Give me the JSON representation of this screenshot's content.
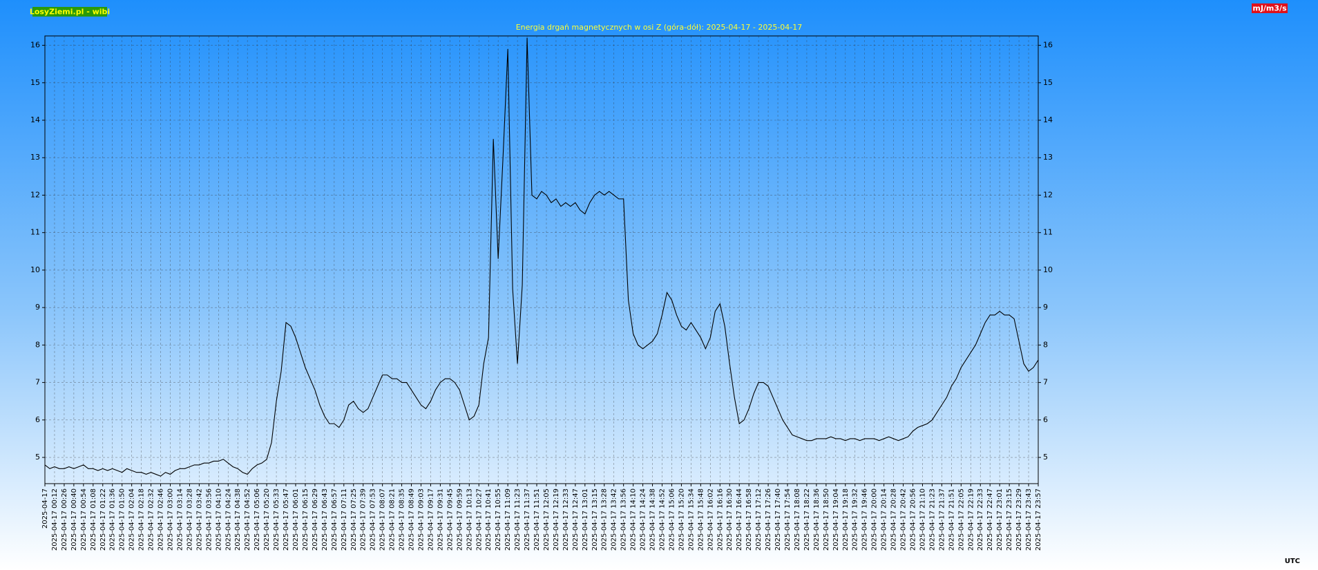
{
  "chart_data": {
    "type": "line",
    "badge": "LosyZiemi.pl - wibi",
    "unit": "mJ/m3/s",
    "timezone": "UTC",
    "title": "Energia drgań magnetycznych w osi Z (góra-dół): 2025-04-17 - 2025-04-17",
    "color": "#000000",
    "grid": true,
    "ylim": [
      4.3,
      16.25
    ],
    "yticks": [
      5,
      6,
      7,
      8,
      9,
      10,
      11,
      12,
      13,
      14,
      15,
      16
    ],
    "categories": [
      "2025-04-17",
      null,
      "2025-04-17 00:12",
      null,
      "2025-04-17 00:26",
      null,
      "2025-04-17 00:40",
      null,
      "2025-04-17 00:54",
      null,
      "2025-04-17 01:08",
      null,
      "2025-04-17 01:22",
      null,
      "2025-04-17 01:36",
      null,
      "2025-04-17 01:50",
      null,
      "2025-04-17 02:04",
      null,
      "2025-04-17 02:18",
      null,
      "2025-04-17 02:32",
      null,
      "2025-04-17 02:46",
      null,
      "2025-04-17 03:00",
      null,
      "2025-04-17 03:14",
      null,
      "2025-04-17 03:28",
      null,
      "2025-04-17 03:42",
      null,
      "2025-04-17 03:56",
      null,
      "2025-04-17 04:10",
      null,
      "2025-04-17 04:24",
      null,
      "2025-04-17 04:38",
      null,
      "2025-04-17 04:52",
      null,
      "2025-04-17 05:06",
      null,
      "2025-04-17 05:20",
      null,
      "2025-04-17 05:33",
      null,
      "2025-04-17 05:47",
      null,
      "2025-04-17 06:01",
      null,
      "2025-04-17 06:15",
      null,
      "2025-04-17 06:29",
      null,
      "2025-04-17 06:43",
      null,
      "2025-04-17 06:57",
      null,
      "2025-04-17 07:11",
      null,
      "2025-04-17 07:25",
      null,
      "2025-04-17 07:39",
      null,
      "2025-04-17 07:53",
      null,
      "2025-04-17 08:07",
      null,
      "2025-04-17 08:21",
      null,
      "2025-04-17 08:35",
      null,
      "2025-04-17 08:49",
      null,
      "2025-04-17 09:03",
      null,
      "2025-04-17 09:17",
      null,
      "2025-04-17 09:31",
      null,
      "2025-04-17 09:45",
      null,
      "2025-04-17 09:59",
      null,
      "2025-04-17 10:13",
      null,
      "2025-04-17 10:27",
      null,
      "2025-04-17 10:41",
      null,
      "2025-04-17 10:55",
      null,
      "2025-04-17 11:09",
      null,
      "2025-04-17 11:23",
      null,
      "2025-04-17 11:37",
      null,
      "2025-04-17 11:51",
      null,
      "2025-04-17 12:05",
      null,
      "2025-04-17 12:19",
      null,
      "2025-04-17 12:33",
      null,
      "2025-04-17 12:47",
      null,
      "2025-04-17 13:01",
      null,
      "2025-04-17 13:15",
      null,
      "2025-04-17 13:28",
      null,
      "2025-04-17 13:42",
      null,
      "2025-04-17 13:56",
      null,
      "2025-04-17 14:10",
      null,
      "2025-04-17 14:24",
      null,
      "2025-04-17 14:38",
      null,
      "2025-04-17 14:52",
      null,
      "2025-04-17 15:06",
      null,
      "2025-04-17 15:20",
      null,
      "2025-04-17 15:34",
      null,
      "2025-04-17 15:48",
      null,
      "2025-04-17 16:02",
      null,
      "2025-04-17 16:16",
      null,
      "2025-04-17 16:30",
      null,
      "2025-04-17 16:44",
      null,
      "2025-04-17 16:58",
      null,
      "2025-04-17 17:12",
      null,
      "2025-04-17 17:26",
      null,
      "2025-04-17 17:40",
      null,
      "2025-04-17 17:54",
      null,
      "2025-04-17 18:08",
      null,
      "2025-04-17 18:22",
      null,
      "2025-04-17 18:36",
      null,
      "2025-04-17 18:50",
      null,
      "2025-04-17 19:04",
      null,
      "2025-04-17 19:18",
      null,
      "2025-04-17 19:32",
      null,
      "2025-04-17 19:46",
      null,
      "2025-04-17 20:00",
      null,
      "2025-04-17 20:14",
      null,
      "2025-04-17 20:28",
      null,
      "2025-04-17 20:42",
      null,
      "2025-04-17 20:56",
      null,
      "2025-04-17 21:10",
      null,
      "2025-04-17 21:23",
      null,
      "2025-04-17 21:37",
      null,
      "2025-04-17 21:51",
      null,
      "2025-04-17 22:05",
      null,
      "2025-04-17 22:19",
      null,
      "2025-04-17 22:33",
      null,
      "2025-04-17 22:47",
      null,
      "2025-04-17 23:01",
      null,
      "2025-04-17 23:15",
      null,
      "2025-04-17 23:29",
      null,
      "2025-04-17 23:43",
      null,
      "2025-04-17 23:57"
    ],
    "values": [
      4.8,
      4.7,
      4.75,
      4.7,
      4.7,
      4.75,
      4.7,
      4.75,
      4.8,
      4.7,
      4.7,
      4.65,
      4.7,
      4.65,
      4.7,
      4.65,
      4.6,
      4.7,
      4.65,
      4.6,
      4.6,
      4.55,
      4.6,
      4.55,
      4.5,
      4.6,
      4.55,
      4.65,
      4.7,
      4.7,
      4.75,
      4.8,
      4.8,
      4.85,
      4.85,
      4.9,
      4.9,
      4.95,
      4.85,
      4.75,
      4.7,
      4.6,
      4.55,
      4.7,
      4.8,
      4.85,
      4.95,
      5.4,
      6.5,
      7.3,
      8.6,
      8.5,
      8.2,
      7.8,
      7.4,
      7.1,
      6.8,
      6.4,
      6.1,
      5.9,
      5.9,
      5.8,
      6.0,
      6.4,
      6.5,
      6.3,
      6.2,
      6.3,
      6.6,
      6.9,
      7.2,
      7.2,
      7.1,
      7.1,
      7.0,
      7.0,
      6.8,
      6.6,
      6.4,
      6.3,
      6.5,
      6.8,
      7.0,
      7.1,
      7.1,
      7.0,
      6.8,
      6.4,
      6.0,
      6.1,
      6.4,
      7.5,
      8.2,
      13.5,
      10.3,
      13.0,
      15.9,
      9.5,
      7.5,
      9.6,
      16.2,
      12.0,
      11.9,
      12.1,
      12.0,
      11.8,
      11.9,
      11.7,
      11.8,
      11.7,
      11.8,
      11.6,
      11.5,
      11.8,
      12.0,
      12.1,
      12.0,
      12.1,
      12.0,
      11.9,
      11.9,
      9.2,
      8.3,
      8.0,
      7.9,
      8.0,
      8.1,
      8.3,
      8.8,
      9.4,
      9.2,
      8.8,
      8.5,
      8.4,
      8.6,
      8.4,
      8.2,
      7.9,
      8.2,
      8.9,
      9.1,
      8.5,
      7.5,
      6.6,
      5.9,
      6.0,
      6.3,
      6.7,
      7.0,
      7.0,
      6.9,
      6.6,
      6.3,
      6.0,
      5.8,
      5.6,
      5.55,
      5.5,
      5.45,
      5.45,
      5.5,
      5.5,
      5.5,
      5.55,
      5.5,
      5.5,
      5.45,
      5.5,
      5.5,
      5.45,
      5.5,
      5.5,
      5.5,
      5.45,
      5.5,
      5.55,
      5.5,
      5.45,
      5.5,
      5.55,
      5.7,
      5.8,
      5.85,
      5.9,
      6.0,
      6.2,
      6.4,
      6.6,
      6.9,
      7.1,
      7.4,
      7.6,
      7.8,
      8.0,
      8.3,
      8.6,
      8.8,
      8.8,
      8.9,
      8.8,
      8.8,
      8.7,
      8.1,
      7.5,
      7.3,
      7.4,
      7.6
    ]
  }
}
